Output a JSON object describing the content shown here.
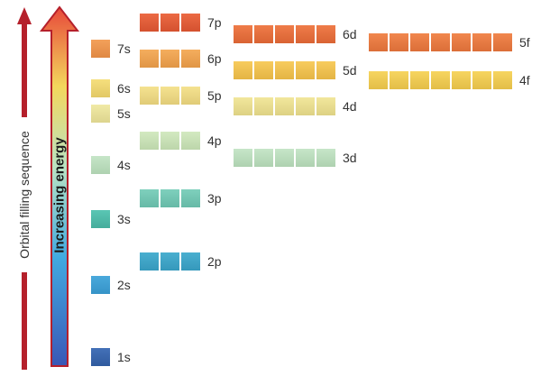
{
  "labels": {
    "filling_sequence": "Orbital filling sequence",
    "increasing_energy": "Increasing energy"
  },
  "colors": {
    "red_arrow": "#b5202b",
    "arrow_gradient_bottom": "#3a57b6",
    "arrow_gradient_mid_low": "#41a9e0",
    "arrow_gradient_mid": "#b9e3c4",
    "arrow_gradient_mid_high": "#f3d75c",
    "arrow_gradient_top": "#e8483a",
    "arrow_outline": "#b5202b"
  },
  "orbitals": [
    {
      "id": "1s",
      "label": "1s",
      "boxes": 1,
      "color": "#4471b8",
      "edge": "#2f5a9e"
    },
    {
      "id": "2s",
      "label": "2s",
      "boxes": 1,
      "color": "#4aa9dc",
      "edge": "#3593c7"
    },
    {
      "id": "2p",
      "label": "2p",
      "boxes": 3,
      "color": "#4aafd0",
      "edge": "#3598bb"
    },
    {
      "id": "3s",
      "label": "3s",
      "boxes": 1,
      "color": "#5ac6b4",
      "edge": "#45ad9c"
    },
    {
      "id": "3p",
      "label": "3p",
      "boxes": 3,
      "color": "#7fd0bd",
      "edge": "#66b9a6"
    },
    {
      "id": "4s",
      "label": "4s",
      "boxes": 1,
      "color": "#c6e6c8",
      "edge": "#aed1b0"
    },
    {
      "id": "3d",
      "label": "3d",
      "boxes": 5,
      "color": "#c6e6c8",
      "edge": "#aed1b0"
    },
    {
      "id": "4p",
      "label": "4p",
      "boxes": 3,
      "color": "#d3eac1",
      "edge": "#bcd6aa"
    },
    {
      "id": "5s",
      "label": "5s",
      "boxes": 1,
      "color": "#f1eaa6",
      "edge": "#ddd48e"
    },
    {
      "id": "4d",
      "label": "4d",
      "boxes": 5,
      "color": "#f2e79c",
      "edge": "#ddd183"
    },
    {
      "id": "5p",
      "label": "5p",
      "boxes": 3,
      "color": "#f5e290",
      "edge": "#e0cb77"
    },
    {
      "id": "6s",
      "label": "6s",
      "boxes": 1,
      "color": "#f6df7d",
      "edge": "#e2c865"
    },
    {
      "id": "4f",
      "label": "4f",
      "boxes": 7,
      "color": "#f7d560",
      "edge": "#e3bd47"
    },
    {
      "id": "5d",
      "label": "5d",
      "boxes": 5,
      "color": "#f8cc5e",
      "edge": "#e4b444"
    },
    {
      "id": "6p",
      "label": "6p",
      "boxes": 3,
      "color": "#f5ae5e",
      "edge": "#e09545"
    },
    {
      "id": "7s",
      "label": "7s",
      "boxes": 1,
      "color": "#f4a15b",
      "edge": "#df8843"
    },
    {
      "id": "5f",
      "label": "5f",
      "boxes": 7,
      "color": "#f1874e",
      "edge": "#db6e38"
    },
    {
      "id": "6d",
      "label": "6d",
      "boxes": 5,
      "color": "#ef7c49",
      "edge": "#d96333"
    },
    {
      "id": "7p",
      "label": "7p",
      "boxes": 3,
      "color": "#ec6a44",
      "edge": "#d4512f"
    }
  ]
}
